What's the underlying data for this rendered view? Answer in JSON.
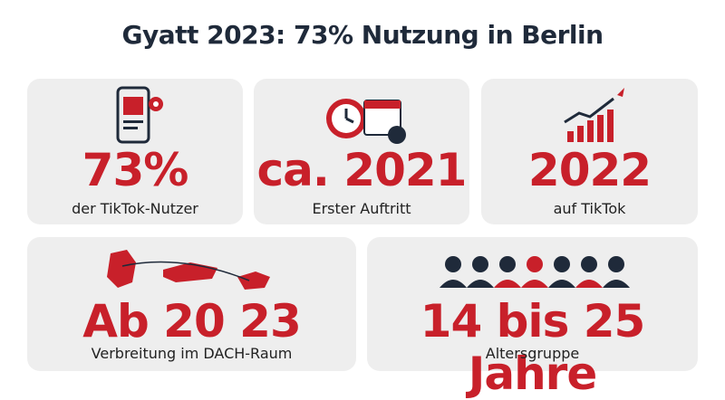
{
  "header": {
    "title": "Gyatt 2023: 73% Nutzung in Berlin"
  },
  "cards": [
    {
      "value": "73%",
      "label": "der TikTok-Nutzer"
    },
    {
      "value": "ca. 2021",
      "label": "Erster Auftritt"
    },
    {
      "value": "2022",
      "label": "auf TikTok"
    },
    {
      "value": "Ab 20 23",
      "label": "Verbreitung im DACH-Raum"
    },
    {
      "value": "14 bis 25 Jahre",
      "label": "Altersgruppe"
    }
  ]
}
